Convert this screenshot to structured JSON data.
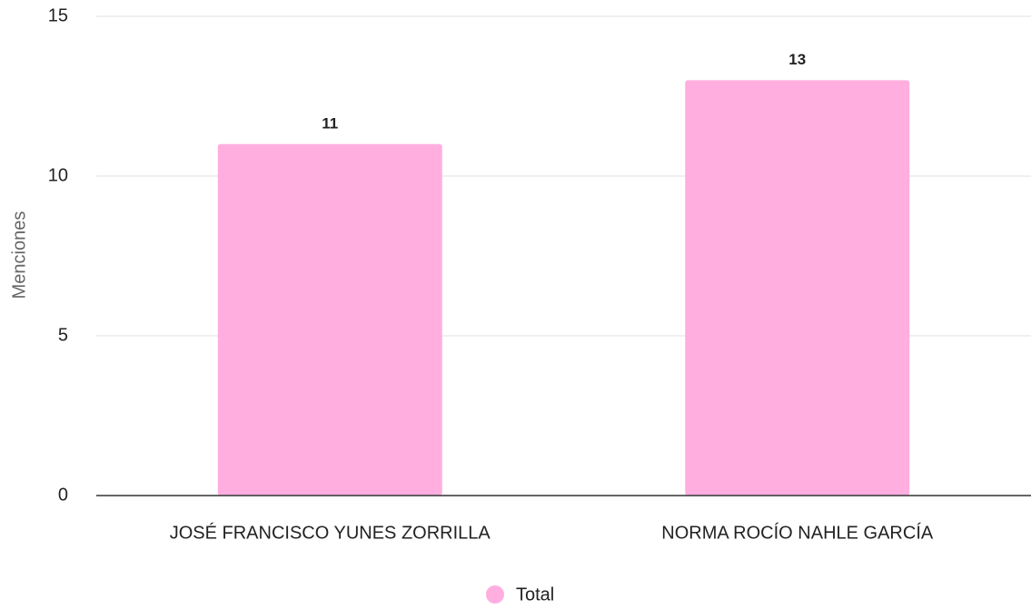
{
  "chart_data": {
    "type": "bar",
    "y_label": "Menciones",
    "categories": [
      "JOSÉ FRANCISCO YUNES ZORRILLA",
      "NORMA ROCÍO NAHLE GARCÍA"
    ],
    "series": [
      {
        "name": "Total",
        "color": "#ffaedf",
        "values": [
          11,
          13
        ]
      }
    ],
    "ylim": [
      0,
      15
    ],
    "yticks": [
      0,
      5,
      10,
      15
    ],
    "grid": true,
    "legend": "bottom"
  }
}
